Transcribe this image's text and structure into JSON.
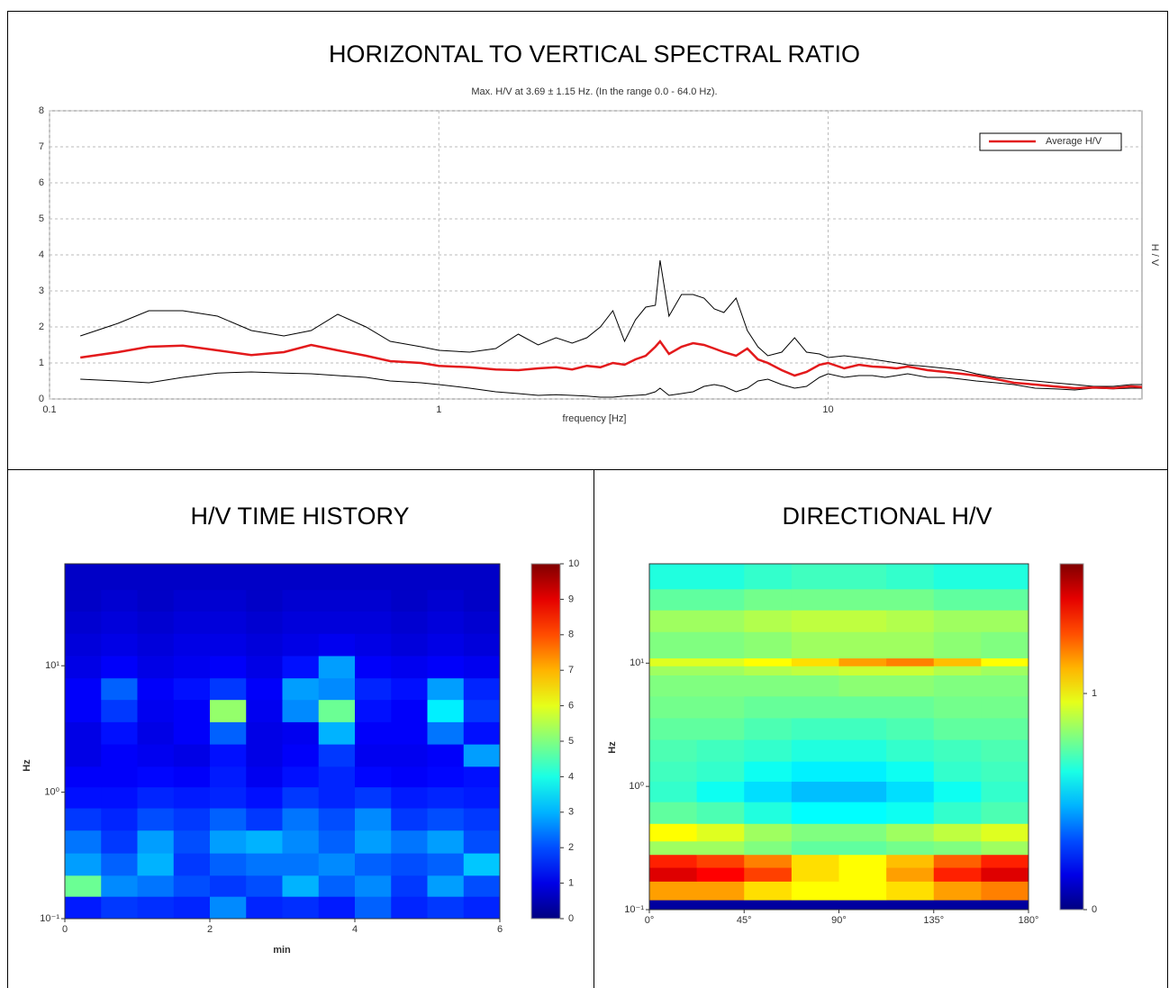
{
  "chart_data": [
    {
      "type": "line",
      "title": "HORIZONTAL TO VERTICAL SPECTRAL RATIO",
      "subtitle": "Max. H/V at 3.69 ± 1.15 Hz. (In the range 0.0 - 64.0 Hz).",
      "x_label": "frequency [Hz]",
      "y_label": "H / V",
      "x_log": true,
      "grid": true,
      "legend": "upper right",
      "xlim": [
        0.1,
        64
      ],
      "xticks": [
        0.1,
        1,
        10
      ],
      "ylim": [
        0,
        8
      ],
      "yticks": [
        0,
        1,
        2,
        3,
        4,
        5,
        6,
        7,
        8
      ],
      "x": [
        0.12,
        0.15,
        0.18,
        0.22,
        0.27,
        0.33,
        0.4,
        0.47,
        0.55,
        0.65,
        0.75,
        0.9,
        1.0,
        1.2,
        1.4,
        1.6,
        1.8,
        2.0,
        2.2,
        2.4,
        2.6,
        2.8,
        3.0,
        3.2,
        3.4,
        3.6,
        3.7,
        3.9,
        4.2,
        4.5,
        4.8,
        5.1,
        5.4,
        5.8,
        6.2,
        6.6,
        7.0,
        7.6,
        8.2,
        8.8,
        9.5,
        10,
        11,
        12,
        13,
        14,
        15,
        16,
        18,
        20,
        22,
        24,
        27,
        30,
        34,
        38,
        43,
        48,
        54,
        60,
        64
      ],
      "series": [
        {
          "color": "#000000",
          "values": [
            1.75,
            2.1,
            2.45,
            2.45,
            2.3,
            1.9,
            1.75,
            1.9,
            2.35,
            2.0,
            1.6,
            1.45,
            1.35,
            1.3,
            1.4,
            1.8,
            1.5,
            1.7,
            1.55,
            1.7,
            2.0,
            2.45,
            1.6,
            2.2,
            2.55,
            2.6,
            3.85,
            2.3,
            2.9,
            2.9,
            2.8,
            2.5,
            2.4,
            2.8,
            1.9,
            1.45,
            1.2,
            1.3,
            1.7,
            1.3,
            1.25,
            1.15,
            1.2,
            1.15,
            1.1,
            1.05,
            1.0,
            0.95,
            0.9,
            0.85,
            0.8,
            0.7,
            0.6,
            0.55,
            0.5,
            0.45,
            0.4,
            0.35,
            0.35,
            0.4,
            0.4
          ]
        },
        {
          "color": "#000000",
          "values": [
            0.55,
            0.5,
            0.45,
            0.6,
            0.72,
            0.75,
            0.72,
            0.7,
            0.65,
            0.6,
            0.5,
            0.45,
            0.4,
            0.3,
            0.2,
            0.15,
            0.1,
            0.12,
            0.1,
            0.08,
            0.05,
            0.05,
            0.08,
            0.1,
            0.12,
            0.2,
            0.3,
            0.1,
            0.15,
            0.2,
            0.35,
            0.4,
            0.35,
            0.2,
            0.3,
            0.5,
            0.55,
            0.4,
            0.3,
            0.35,
            0.6,
            0.7,
            0.6,
            0.65,
            0.65,
            0.6,
            0.65,
            0.7,
            0.6,
            0.6,
            0.55,
            0.5,
            0.45,
            0.4,
            0.3,
            0.28,
            0.25,
            0.3,
            0.28,
            0.3,
            0.3
          ]
        },
        {
          "name": "Average H/V",
          "color": "#e31a1c",
          "values": [
            1.15,
            1.3,
            1.45,
            1.48,
            1.35,
            1.22,
            1.3,
            1.5,
            1.35,
            1.2,
            1.05,
            1.0,
            0.92,
            0.88,
            0.82,
            0.8,
            0.85,
            0.88,
            0.82,
            0.92,
            0.88,
            1.0,
            0.95,
            1.1,
            1.2,
            1.45,
            1.6,
            1.25,
            1.45,
            1.55,
            1.5,
            1.4,
            1.3,
            1.2,
            1.4,
            1.1,
            1.0,
            0.8,
            0.65,
            0.75,
            0.95,
            1.0,
            0.85,
            0.95,
            0.9,
            0.88,
            0.85,
            0.9,
            0.8,
            0.75,
            0.7,
            0.65,
            0.55,
            0.45,
            0.4,
            0.35,
            0.3,
            0.32,
            0.3,
            0.35,
            0.33
          ]
        }
      ]
    },
    {
      "type": "heatmap",
      "title": "H/V TIME HISTORY",
      "x_label": "min",
      "y_label": "Hz",
      "y_log": true,
      "colormap": "jet",
      "xlim": [
        0,
        6
      ],
      "xticks": [
        0,
        2,
        4,
        6
      ],
      "ylim": [
        0.1,
        64
      ],
      "yticks": [
        {
          "value": 0.1,
          "label": "10⁻¹"
        },
        {
          "value": 1,
          "label": "10⁰"
        },
        {
          "value": 10,
          "label": "10¹"
        }
      ],
      "zlim": [
        0,
        10
      ],
      "zticks": [
        0,
        1,
        2,
        3,
        4,
        5,
        6,
        7,
        8,
        9,
        10
      ],
      "xbins": [
        0,
        0.5,
        1,
        1.5,
        2,
        2.5,
        3,
        3.5,
        4,
        4.5,
        5,
        5.5,
        6
      ],
      "ybins": [
        0.1,
        0.15,
        0.22,
        0.33,
        0.5,
        0.75,
        1.1,
        1.6,
        2.4,
        3.6,
        5.4,
        8,
        12,
        18,
        27,
        40,
        64
      ],
      "z": [
        [
          1.5,
          1.8,
          1.7,
          1.6,
          2.6,
          1.6,
          1.7,
          1.5,
          2.2,
          1.6,
          1.8,
          1.6
        ],
        [
          4.8,
          2.6,
          2.4,
          2.0,
          1.8,
          2.0,
          3.0,
          2.2,
          2.6,
          1.8,
          2.8,
          2.0
        ],
        [
          2.8,
          2.2,
          3.0,
          1.8,
          2.2,
          2.4,
          2.4,
          2.6,
          2.2,
          2.0,
          2.2,
          3.2
        ],
        [
          2.4,
          1.8,
          2.8,
          2.0,
          2.8,
          3.0,
          2.6,
          2.2,
          2.8,
          2.4,
          2.8,
          2.0
        ],
        [
          1.8,
          1.6,
          2.0,
          1.8,
          2.2,
          1.8,
          2.4,
          2.0,
          2.6,
          1.8,
          2.0,
          1.8
        ],
        [
          1.4,
          1.4,
          1.6,
          1.5,
          1.6,
          1.4,
          1.8,
          1.6,
          1.8,
          1.5,
          1.6,
          1.5
        ],
        [
          1.2,
          1.2,
          1.3,
          1.2,
          1.5,
          1.1,
          1.4,
          1.6,
          1.3,
          1.2,
          1.3,
          1.4
        ],
        [
          1.0,
          1.2,
          1.1,
          1.0,
          1.4,
          1.0,
          1.2,
          1.8,
          1.1,
          1.1,
          1.2,
          2.8
        ],
        [
          1.0,
          1.4,
          1.0,
          1.2,
          2.2,
          1.0,
          1.1,
          3.0,
          1.2,
          1.2,
          2.4,
          1.4
        ],
        [
          1.2,
          1.8,
          1.1,
          1.2,
          5.2,
          1.1,
          2.6,
          4.8,
          1.4,
          1.2,
          3.6,
          1.8
        ],
        [
          1.2,
          2.2,
          1.2,
          1.4,
          1.8,
          1.2,
          2.8,
          2.6,
          1.6,
          1.4,
          2.8,
          1.6
        ],
        [
          1.0,
          1.2,
          1.0,
          1.1,
          1.2,
          1.0,
          1.4,
          2.8,
          1.2,
          1.1,
          1.2,
          1.1
        ],
        [
          0.9,
          1.0,
          0.9,
          1.0,
          1.0,
          0.9,
          1.0,
          1.1,
          1.0,
          0.9,
          1.0,
          0.9
        ],
        [
          0.8,
          0.9,
          0.8,
          0.9,
          0.9,
          0.8,
          0.9,
          0.9,
          0.9,
          0.8,
          0.9,
          0.8
        ],
        [
          0.7,
          0.8,
          0.7,
          0.8,
          0.8,
          0.7,
          0.8,
          0.8,
          0.8,
          0.7,
          0.8,
          0.7
        ],
        [
          0.7,
          0.7,
          0.7,
          0.7,
          0.7,
          0.7,
          0.7,
          0.7,
          0.7,
          0.7,
          0.7,
          0.7
        ]
      ]
    },
    {
      "type": "heatmap",
      "title": "DIRECTIONAL H/V",
      "y_label": "Hz",
      "y_log": true,
      "colormap": "jet",
      "xlim": [
        0,
        180
      ],
      "xticks": [
        {
          "value": 0,
          "label": "0°"
        },
        {
          "value": 45,
          "label": "45°"
        },
        {
          "value": 90,
          "label": "90°"
        },
        {
          "value": 135,
          "label": "135°"
        },
        {
          "value": 180,
          "label": "180°"
        }
      ],
      "ylim": [
        0.1,
        64
      ],
      "yticks": [
        {
          "value": 0.1,
          "label": "10⁻¹"
        },
        {
          "value": 1,
          "label": "10⁰"
        },
        {
          "value": 10,
          "label": "10¹"
        }
      ],
      "zlim": [
        0,
        1.6
      ],
      "zticks": [
        0,
        1
      ],
      "xbins": [
        0,
        22.5,
        45,
        67.5,
        90,
        112.5,
        135,
        157.5,
        180
      ],
      "ybins": [
        0.1,
        0.12,
        0.17,
        0.22,
        0.28,
        0.36,
        0.5,
        0.75,
        1.1,
        1.6,
        2.4,
        3.6,
        5.4,
        8,
        9.5,
        11,
        18,
        27,
        40,
        64
      ],
      "z": [
        [
          0.05,
          0.05,
          0.05,
          0.05,
          0.05,
          0.05,
          0.05,
          0.05
        ],
        [
          1.15,
          1.15,
          1.05,
          1.0,
          1.0,
          1.05,
          1.15,
          1.2
        ],
        [
          1.45,
          1.4,
          1.3,
          1.05,
          1.0,
          1.15,
          1.35,
          1.45
        ],
        [
          1.35,
          1.3,
          1.2,
          1.05,
          1.0,
          1.1,
          1.25,
          1.35
        ],
        [
          0.85,
          0.85,
          0.8,
          0.75,
          0.75,
          0.78,
          0.8,
          0.85
        ],
        [
          1.0,
          0.95,
          0.85,
          0.8,
          0.8,
          0.85,
          0.9,
          0.95
        ],
        [
          0.75,
          0.72,
          0.65,
          0.6,
          0.6,
          0.62,
          0.68,
          0.72
        ],
        [
          0.68,
          0.62,
          0.55,
          0.5,
          0.5,
          0.55,
          0.62,
          0.68
        ],
        [
          0.7,
          0.68,
          0.62,
          0.58,
          0.58,
          0.62,
          0.68,
          0.7
        ],
        [
          0.72,
          0.7,
          0.68,
          0.65,
          0.65,
          0.68,
          0.7,
          0.72
        ],
        [
          0.75,
          0.75,
          0.72,
          0.7,
          0.7,
          0.72,
          0.75,
          0.75
        ],
        [
          0.78,
          0.78,
          0.76,
          0.76,
          0.76,
          0.76,
          0.78,
          0.78
        ],
        [
          0.8,
          0.8,
          0.8,
          0.8,
          0.82,
          0.82,
          0.8,
          0.8
        ],
        [
          0.85,
          0.85,
          0.88,
          0.9,
          0.92,
          0.92,
          0.88,
          0.85
        ],
        [
          0.95,
          0.95,
          1.0,
          1.05,
          1.15,
          1.2,
          1.1,
          1.0
        ],
        [
          0.8,
          0.8,
          0.82,
          0.85,
          0.85,
          0.85,
          0.82,
          0.8
        ],
        [
          0.85,
          0.85,
          0.88,
          0.9,
          0.9,
          0.88,
          0.85,
          0.85
        ],
        [
          0.75,
          0.75,
          0.78,
          0.78,
          0.78,
          0.78,
          0.75,
          0.75
        ],
        [
          0.65,
          0.65,
          0.68,
          0.7,
          0.7,
          0.68,
          0.65,
          0.65
        ]
      ]
    }
  ]
}
